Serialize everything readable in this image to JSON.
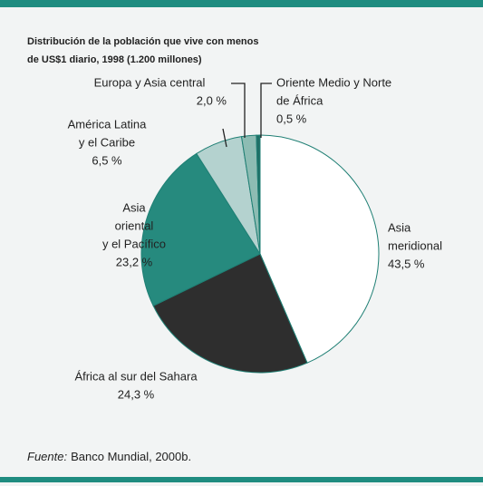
{
  "chart_data": {
    "type": "pie",
    "title": [
      "Distribución de la población que vive con menos",
      "de US$1 diario, 1998 (1.200 millones)"
    ],
    "categories": [
      [
        "Asia",
        "meridional"
      ],
      [
        "África al sur del Sahara"
      ],
      [
        "Asia",
        "oriental",
        "y el Pacífico"
      ],
      [
        "América Latina",
        "y el Caribe"
      ],
      [
        "Europa y Asia central"
      ],
      [
        "Oriente Medio y Norte",
        "de África"
      ]
    ],
    "values": [
      43.5,
      24.3,
      23.2,
      6.5,
      2.0,
      0.5
    ],
    "value_labels": [
      "43,5 %",
      "24,3 %",
      "23,2 %",
      "6,5 %",
      "2,0 %",
      "0,5 %"
    ],
    "colors": [
      "#ffffff",
      "#2e2e2e",
      "#268a7e",
      "#b4d2cf",
      "#8dbcb3",
      "#1f6f66"
    ],
    "source": {
      "label": "Fuente:",
      "text": "Banco Mundial, 2000b."
    }
  }
}
